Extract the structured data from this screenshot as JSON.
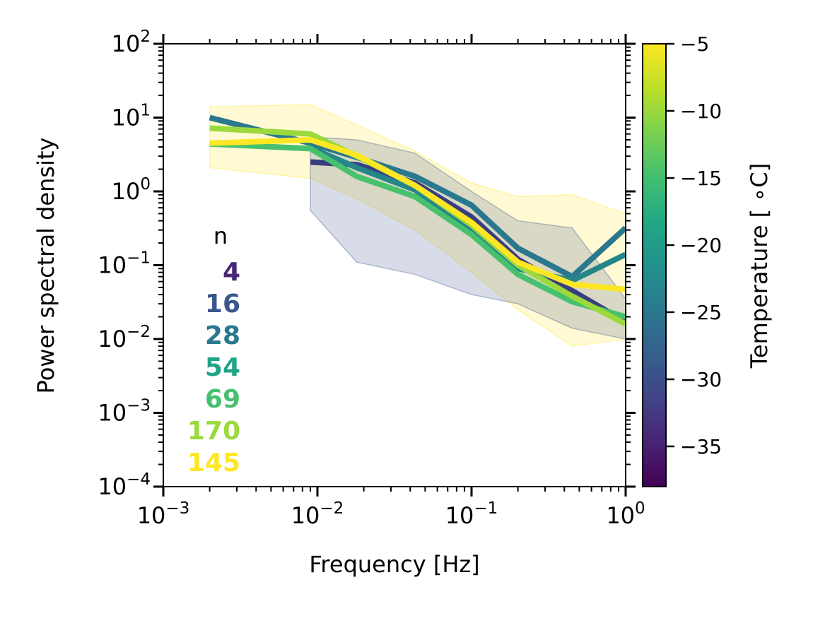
{
  "chart_data": {
    "type": "line",
    "xlabel": "Frequency [Hz]",
    "ylabel": "Power spectral density",
    "xscale": "log",
    "yscale": "log",
    "xlim": [
      0.001,
      1
    ],
    "ylim": [
      0.0001,
      100
    ],
    "x_ticks": [
      {
        "base": "10",
        "exp": "−3"
      },
      {
        "base": "10",
        "exp": "−2"
      },
      {
        "base": "10",
        "exp": "−1"
      },
      {
        "base": "10",
        "exp": "0"
      }
    ],
    "y_ticks": [
      {
        "base": "10",
        "exp": "−4"
      },
      {
        "base": "10",
        "exp": "−3"
      },
      {
        "base": "10",
        "exp": "−2"
      },
      {
        "base": "10",
        "exp": "−1"
      },
      {
        "base": "10",
        "exp": "0"
      },
      {
        "base": "10",
        "exp": "1"
      },
      {
        "base": "10",
        "exp": "2"
      }
    ],
    "legend": {
      "title": "n",
      "placement": "left",
      "entries": [
        {
          "label": "4",
          "color": "#482677"
        },
        {
          "label": "16",
          "color": "#39568c"
        },
        {
          "label": "28",
          "color": "#2a788e"
        },
        {
          "label": "54",
          "color": "#20a386"
        },
        {
          "label": "69",
          "color": "#48c16e"
        },
        {
          "label": "170",
          "color": "#9bd93c"
        },
        {
          "label": "145",
          "color": "#fde725"
        }
      ]
    },
    "series": [
      {
        "color": "#3a3d80",
        "x": [
          0.009,
          0.018,
          0.043,
          0.1,
          0.2,
          0.45,
          1.0
        ],
        "y": [
          2.5,
          2.3,
          1.3,
          0.45,
          0.12,
          0.045,
          0.017
        ]
      },
      {
        "color": "#2a788e",
        "x": [
          0.002,
          0.009,
          0.018,
          0.043,
          0.1,
          0.2,
          0.45,
          1.0
        ],
        "y": [
          10.0,
          4.5,
          2.9,
          1.6,
          0.65,
          0.17,
          0.07,
          0.32
        ]
      },
      {
        "color": "#25868a",
        "x": [
          0.009,
          0.018,
          0.043,
          0.1,
          0.2,
          0.45,
          1.0
        ],
        "y": [
          3.9,
          2.1,
          1.05,
          0.3,
          0.09,
          0.062,
          0.14
        ]
      },
      {
        "color": "#48c16e",
        "x": [
          0.002,
          0.009,
          0.018,
          0.043,
          0.1,
          0.2,
          0.45,
          1.0
        ],
        "y": [
          4.4,
          3.8,
          1.6,
          0.85,
          0.26,
          0.075,
          0.032,
          0.02
        ]
      },
      {
        "color": "#9bd93c",
        "x": [
          0.002,
          0.009,
          0.018,
          0.043,
          0.1,
          0.2,
          0.45,
          1.0
        ],
        "y": [
          7.2,
          6.0,
          3.0,
          1.2,
          0.35,
          0.1,
          0.038,
          0.016
        ]
      },
      {
        "color": "#fde725",
        "x": [
          0.002,
          0.009,
          0.018,
          0.043,
          0.1,
          0.2,
          0.45,
          1.0
        ],
        "y": [
          4.5,
          5.0,
          3.1,
          1.2,
          0.38,
          0.11,
          0.055,
          0.047
        ]
      }
    ],
    "bands": [
      {
        "color": "#fde725",
        "x": [
          0.002,
          0.009,
          0.018,
          0.043,
          0.1,
          0.2,
          0.45,
          1.0
        ],
        "upper": [
          14,
          15,
          8,
          3.5,
          1.3,
          0.85,
          0.9,
          0.5
        ],
        "lower": [
          2.1,
          1.5,
          0.8,
          0.3,
          0.08,
          0.025,
          0.008,
          0.01
        ]
      },
      {
        "color": "#3b528b",
        "x": [
          0.009,
          0.018,
          0.043,
          0.1,
          0.2,
          0.45,
          1.0
        ],
        "upper": [
          5.5,
          5.0,
          3.3,
          1.0,
          0.4,
          0.32,
          0.035
        ],
        "lower": [
          0.55,
          0.11,
          0.075,
          0.04,
          0.03,
          0.014,
          0.01
        ]
      }
    ],
    "colorbar": {
      "label": "Temperature [$^\\circ$C]",
      "label_display": "Temperature [ ∘C]",
      "range": [
        -38,
        -5
      ],
      "ticks": [
        "−5",
        "−10",
        "−15",
        "−20",
        "−25",
        "−30",
        "−35"
      ],
      "tick_values": [
        -5,
        -10,
        -15,
        -20,
        -25,
        -30,
        -35
      ],
      "colormap": "viridis"
    }
  }
}
